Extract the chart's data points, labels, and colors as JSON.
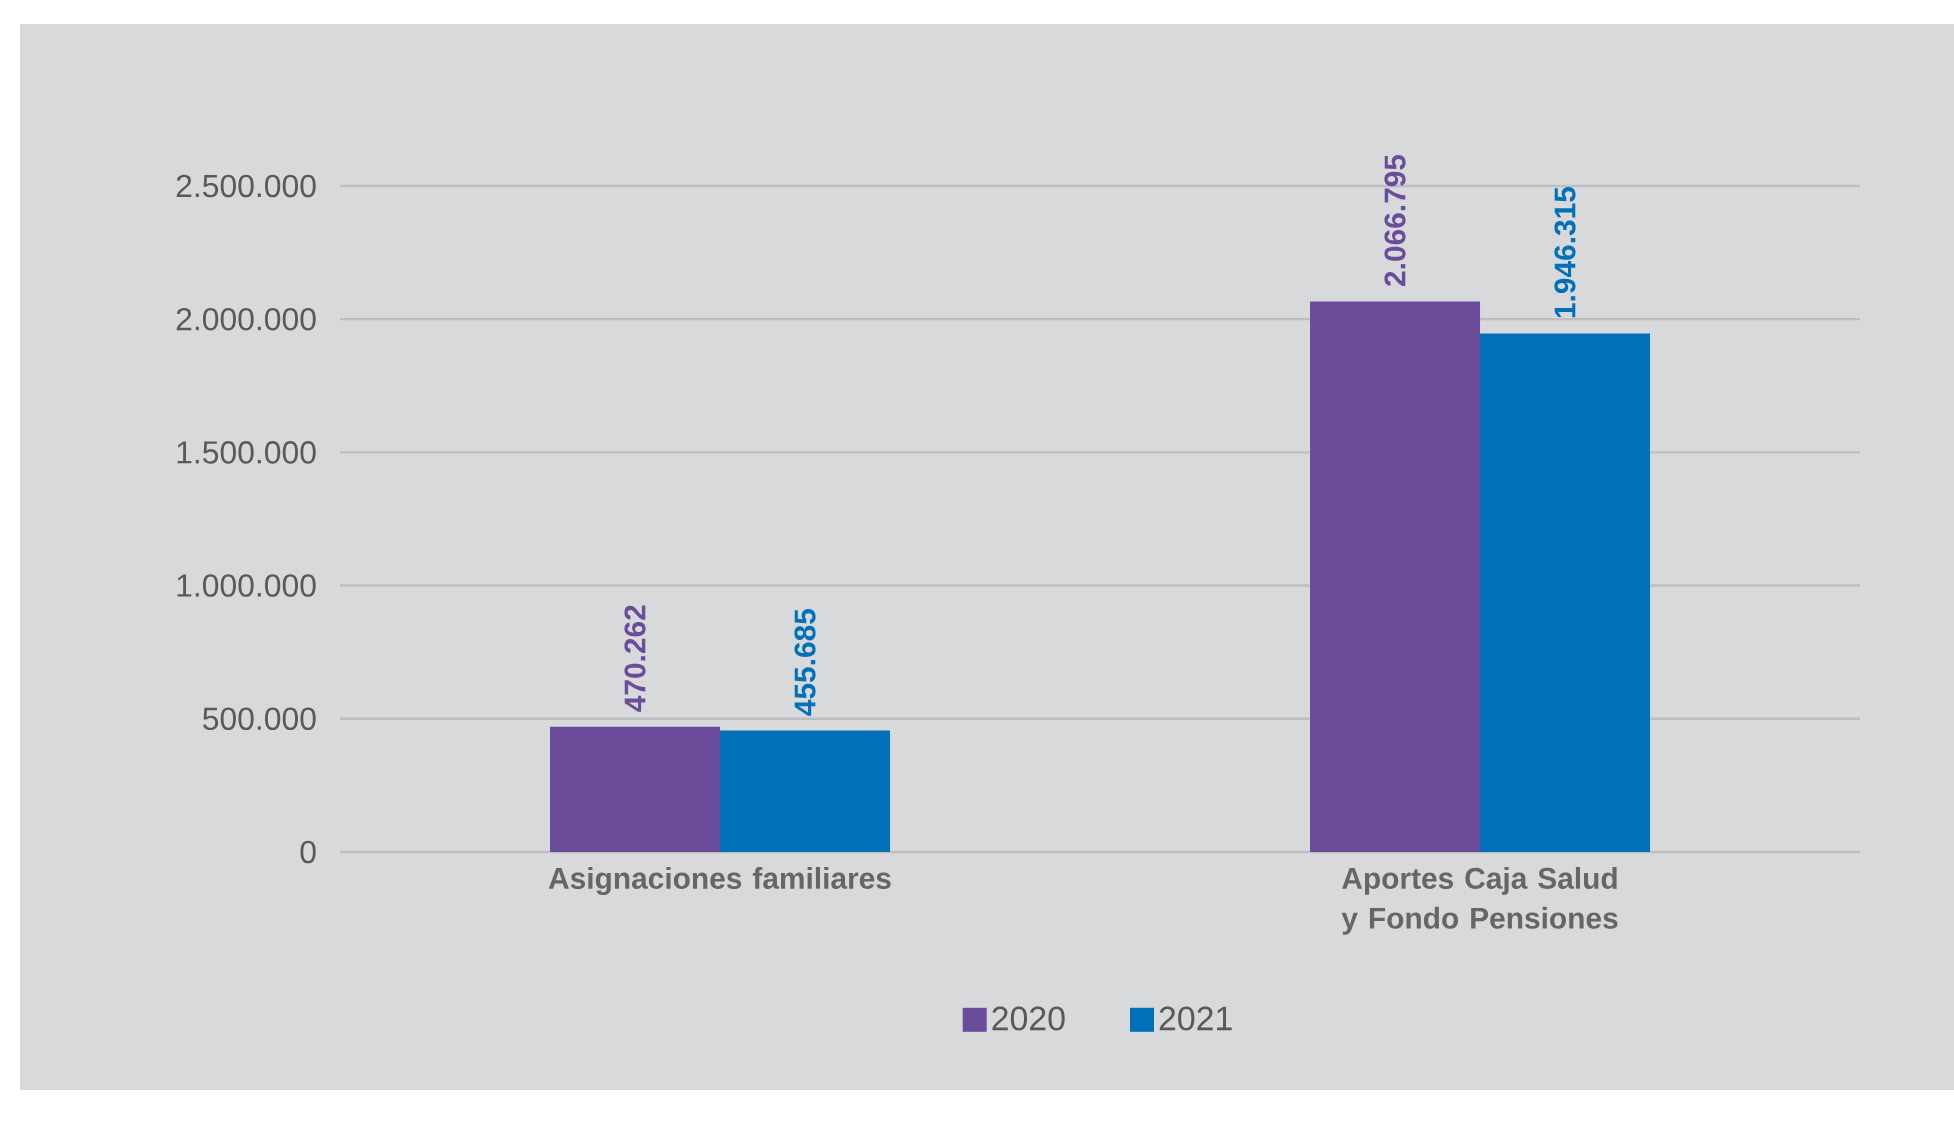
{
  "chart_data": {
    "type": "bar",
    "categories": [
      "Asignaciones familiares",
      "Aportes Caja Salud y Fondo Pensiones"
    ],
    "series": [
      {
        "name": "2020",
        "color": "#6b4c9a",
        "values": [
          470262,
          2066795
        ],
        "value_labels": [
          "470.262",
          "2.066.795"
        ]
      },
      {
        "name": "2021",
        "color": "#0071b8",
        "values": [
          455685,
          1946315
        ],
        "value_labels": [
          "455.685",
          "1.946.315"
        ]
      }
    ],
    "ylim": [
      0,
      2500000
    ],
    "yticks": [
      {
        "value": 0,
        "label": "0"
      },
      {
        "value": 500000,
        "label": "500.000"
      },
      {
        "value": 1000000,
        "label": "1.000.000"
      },
      {
        "value": 1500000,
        "label": "1.500.000"
      },
      {
        "value": 2000000,
        "label": "2.000.000"
      },
      {
        "value": 2500000,
        "label": "2.500.000"
      }
    ],
    "grid": "y",
    "legend": "bottom"
  }
}
